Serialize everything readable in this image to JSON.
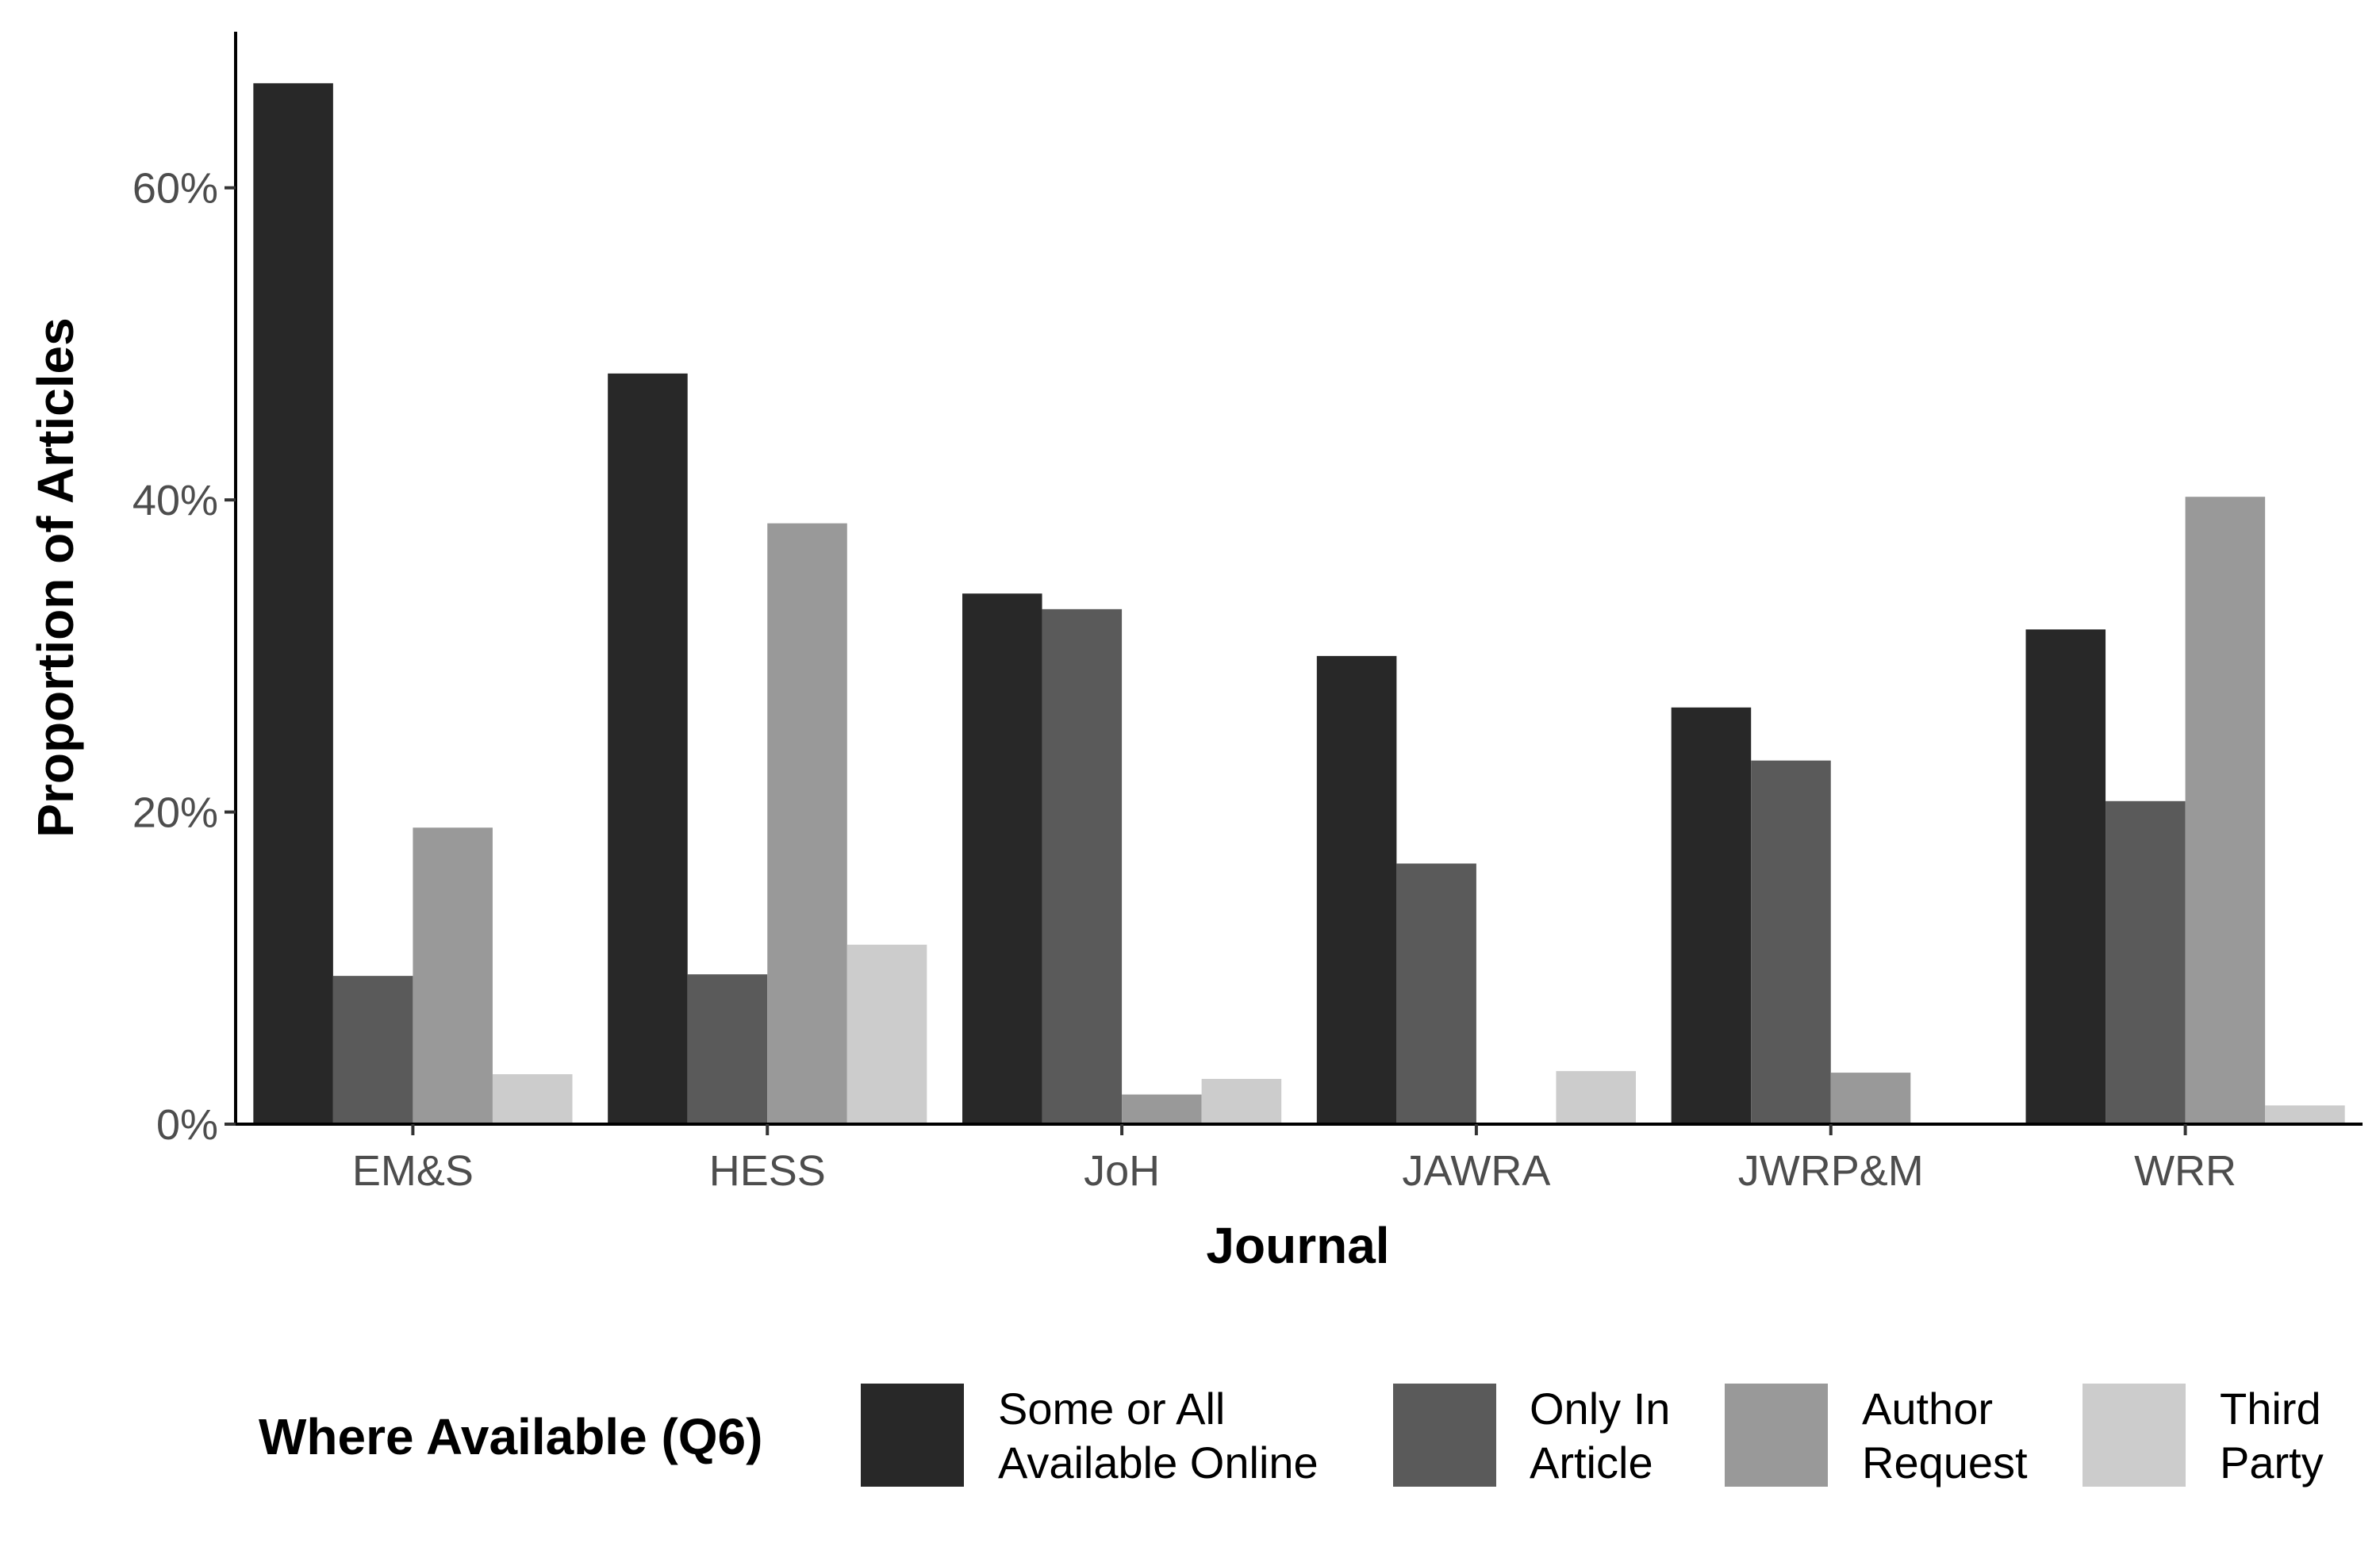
{
  "chart_data": {
    "type": "bar",
    "title": "",
    "xlabel": "Journal",
    "ylabel": "Proportion of Articles",
    "categories": [
      "EM&S",
      "HESS",
      "JoH",
      "JAWRA",
      "JWRP&M",
      "WRR"
    ],
    "series": [
      {
        "name": "Some or All Available Online",
        "color": "#282828",
        "values": [
          66.7,
          48.1,
          34.0,
          30.0,
          26.7,
          31.7
        ]
      },
      {
        "name": "Only In Article",
        "color": "#5a5a5a",
        "values": [
          9.5,
          9.6,
          33.0,
          16.7,
          23.3,
          20.7
        ]
      },
      {
        "name": "Author Request",
        "color": "#999999",
        "values": [
          19.0,
          38.5,
          1.9,
          0.0,
          3.3,
          40.2
        ]
      },
      {
        "name": "Third Party",
        "color": "#cccccc",
        "values": [
          3.2,
          11.5,
          2.9,
          3.4,
          0.0,
          1.2
        ]
      }
    ],
    "ylim": [
      0,
      70
    ],
    "yticks": [
      0,
      20,
      40,
      60
    ],
    "ytick_labels": [
      "0%",
      "20%",
      "40%",
      "60%"
    ],
    "grid": false,
    "legend": {
      "title": "Where Available (Q6)",
      "position": "bottom",
      "labels": [
        [
          "Some or All",
          "Available Online"
        ],
        [
          "Only In",
          "Article"
        ],
        [
          "Author",
          "Request"
        ],
        [
          "Third",
          "Party"
        ]
      ]
    }
  }
}
